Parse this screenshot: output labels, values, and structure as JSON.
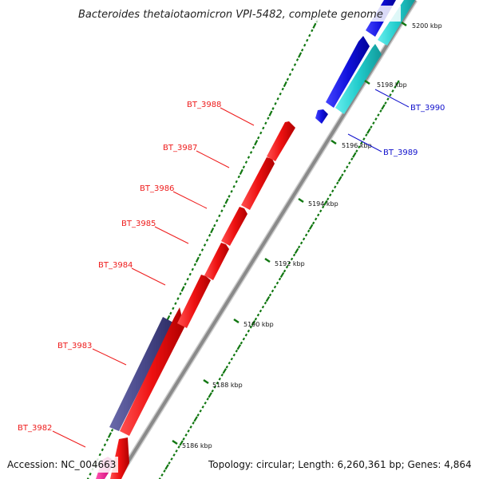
{
  "title": "Bacteroides thetaiotaomicron VPI-5482, complete genome",
  "footer": {
    "accession": "Accession: NC_004663",
    "summary": "Topology: circular; Length: 6,260,361 bp; Genes: 4,864"
  },
  "ticks": [
    "5200 kbp",
    "5198 kbp",
    "5196 kbp",
    "5194 kbp",
    "5192 kbp",
    "5190 kbp",
    "5188 kbp",
    "5186 kbp"
  ],
  "genes": [
    {
      "name": "BT_3982",
      "strand": "forward",
      "color": "#ee1c1c"
    },
    {
      "name": "BT_3983",
      "strand": "forward",
      "color": "#ee1c1c"
    },
    {
      "name": "BT_3984",
      "strand": "forward",
      "color": "#ee1c1c"
    },
    {
      "name": "BT_3985",
      "strand": "forward",
      "color": "#ee1c1c"
    },
    {
      "name": "BT_3986",
      "strand": "forward",
      "color": "#ee1c1c"
    },
    {
      "name": "BT_3987",
      "strand": "forward",
      "color": "#ee1c1c"
    },
    {
      "name": "BT_3988",
      "strand": "forward",
      "color": "#ee1c1c"
    },
    {
      "name": "BT_3989",
      "strand": "reverse",
      "color": "#1111cc"
    },
    {
      "name": "BT_3990",
      "strand": "reverse",
      "color": "#1111cc"
    }
  ],
  "colors": {
    "forward_cds": "#ee1c1c",
    "reverse_cds": "#1111cc",
    "cyan_feature": "#22cccc",
    "purple_feature": "#4a4a8c",
    "magenta_feature": "#e0208c",
    "dot_marks": "#117711",
    "backbone": "#888888"
  }
}
